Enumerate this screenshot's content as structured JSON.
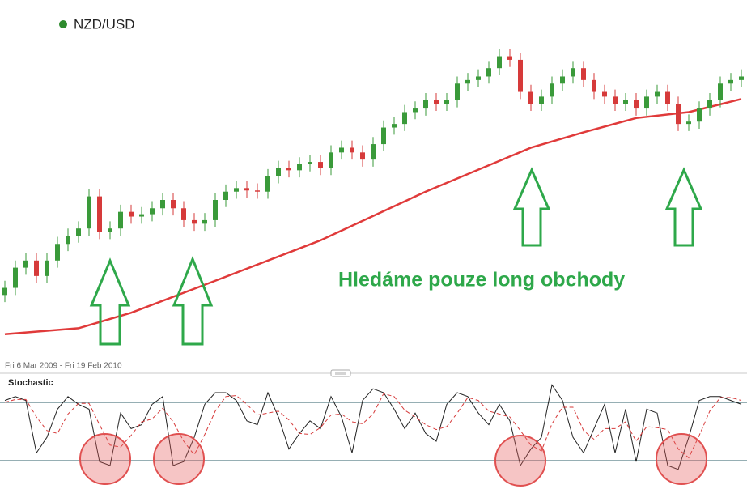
{
  "chart_data": [
    {
      "type": "candlestick",
      "subtitle": "Fri 6 Mar 2009 - Fri 19 Feb 2010",
      "annotation": "Hledáme pouze long obchody",
      "ylim": [
        0.46,
        0.76
      ],
      "legend": "top-left",
      "series": [
        {
          "name": "NZD/USD",
          "color": "#2e8b2e",
          "up_color": "#3a9a3a",
          "down_color": "#d63a3a",
          "open": [
            0.515,
            0.521,
            0.538,
            0.544,
            0.531,
            0.544,
            0.558,
            0.565,
            0.571,
            0.598,
            0.568,
            0.571,
            0.585,
            0.581,
            0.583,
            0.588,
            0.595,
            0.588,
            0.578,
            0.575,
            0.578,
            0.595,
            0.602,
            0.605,
            0.603,
            0.602,
            0.615,
            0.622,
            0.62,
            0.625,
            0.627,
            0.622,
            0.635,
            0.639,
            0.635,
            0.629,
            0.642,
            0.656,
            0.659,
            0.669,
            0.672,
            0.679,
            0.676,
            0.679,
            0.693,
            0.696,
            0.699,
            0.706,
            0.716,
            0.713,
            0.686,
            0.676,
            0.682,
            0.693,
            0.699,
            0.706,
            0.696,
            0.686,
            0.682,
            0.676,
            0.679,
            0.672,
            0.682,
            0.686,
            0.676,
            0.659,
            0.661,
            0.672,
            0.679,
            0.693,
            0.696
          ],
          "high": [
            0.527,
            0.544,
            0.55,
            0.55,
            0.55,
            0.564,
            0.571,
            0.577,
            0.604,
            0.604,
            0.577,
            0.591,
            0.591,
            0.589,
            0.594,
            0.601,
            0.601,
            0.594,
            0.584,
            0.584,
            0.601,
            0.608,
            0.611,
            0.611,
            0.609,
            0.621,
            0.628,
            0.628,
            0.631,
            0.633,
            0.633,
            0.641,
            0.645,
            0.645,
            0.641,
            0.648,
            0.662,
            0.665,
            0.675,
            0.678,
            0.685,
            0.685,
            0.685,
            0.699,
            0.702,
            0.705,
            0.712,
            0.722,
            0.722,
            0.719,
            0.692,
            0.688,
            0.699,
            0.705,
            0.712,
            0.712,
            0.702,
            0.692,
            0.688,
            0.685,
            0.685,
            0.688,
            0.692,
            0.692,
            0.682,
            0.667,
            0.678,
            0.685,
            0.699,
            0.702,
            0.705
          ],
          "low": [
            0.509,
            0.515,
            0.532,
            0.525,
            0.525,
            0.538,
            0.552,
            0.559,
            0.565,
            0.562,
            0.562,
            0.565,
            0.575,
            0.575,
            0.577,
            0.582,
            0.582,
            0.572,
            0.569,
            0.569,
            0.572,
            0.589,
            0.596,
            0.597,
            0.596,
            0.596,
            0.609,
            0.614,
            0.614,
            0.619,
            0.616,
            0.616,
            0.629,
            0.629,
            0.623,
            0.623,
            0.636,
            0.65,
            0.653,
            0.663,
            0.666,
            0.67,
            0.67,
            0.673,
            0.687,
            0.69,
            0.693,
            0.7,
            0.707,
            0.68,
            0.67,
            0.67,
            0.676,
            0.687,
            0.693,
            0.69,
            0.68,
            0.676,
            0.67,
            0.67,
            0.666,
            0.666,
            0.676,
            0.67,
            0.653,
            0.653,
            0.655,
            0.666,
            0.673,
            0.687,
            0.69
          ],
          "close": [
            0.521,
            0.538,
            0.544,
            0.531,
            0.544,
            0.558,
            0.565,
            0.571,
            0.598,
            0.568,
            0.571,
            0.585,
            0.581,
            0.583,
            0.588,
            0.595,
            0.588,
            0.578,
            0.575,
            0.578,
            0.595,
            0.602,
            0.605,
            0.603,
            0.602,
            0.615,
            0.622,
            0.62,
            0.625,
            0.627,
            0.622,
            0.635,
            0.639,
            0.635,
            0.629,
            0.642,
            0.656,
            0.659,
            0.669,
            0.672,
            0.679,
            0.676,
            0.679,
            0.693,
            0.696,
            0.699,
            0.706,
            0.716,
            0.713,
            0.686,
            0.676,
            0.682,
            0.693,
            0.699,
            0.706,
            0.696,
            0.686,
            0.682,
            0.676,
            0.679,
            0.672,
            0.682,
            0.686,
            0.676,
            0.659,
            0.661,
            0.672,
            0.679,
            0.693,
            0.696,
            0.699
          ]
        }
      ],
      "ma": {
        "color": "#e03a3a",
        "x": [
          0,
          7,
          12,
          20,
          30,
          40,
          50,
          55,
          60,
          65,
          70
        ],
        "values": [
          0.482,
          0.487,
          0.5,
          0.527,
          0.561,
          0.602,
          0.639,
          0.652,
          0.664,
          0.669,
          0.68
        ]
      }
    },
    {
      "type": "line",
      "title": "Stochastic",
      "ylim": [
        0,
        100
      ],
      "levels": [
        20,
        80
      ],
      "level_color": "#2d5f6a",
      "series": [
        {
          "color": "#222222",
          "dash": false,
          "values": [
            82,
            86,
            82,
            28,
            44,
            73,
            86,
            78,
            73,
            19,
            15,
            69,
            53,
            57,
            78,
            86,
            15,
            19,
            44,
            78,
            90,
            90,
            82,
            61,
            57,
            90,
            65,
            32,
            48,
            61,
            53,
            86,
            65,
            28,
            82,
            94,
            90,
            73,
            53,
            69,
            48,
            40,
            78,
            90,
            86,
            69,
            57,
            78,
            61,
            15,
            32,
            44,
            98,
            82,
            44,
            28,
            53,
            78,
            28,
            73,
            19,
            73,
            69,
            15,
            11,
            44,
            82,
            86,
            86,
            82,
            78
          ]
        },
        {
          "color": "#d63a3a",
          "dash": true,
          "values": [
            80,
            83,
            83,
            65,
            51,
            48,
            68,
            79,
            79,
            57,
            36,
            34,
            46,
            60,
            63,
            74,
            60,
            40,
            26,
            47,
            71,
            86,
            87,
            78,
            67,
            69,
            71,
            62,
            48,
            47,
            54,
            67,
            68,
            60,
            58,
            68,
            89,
            86,
            72,
            65,
            57,
            52,
            55,
            69,
            85,
            82,
            71,
            68,
            65,
            51,
            36,
            30,
            58,
            75,
            75,
            51,
            42,
            53,
            53,
            60,
            40,
            55,
            54,
            52,
            32,
            23,
            46,
            71,
            85,
            85,
            82
          ]
        }
      ]
    }
  ]
}
